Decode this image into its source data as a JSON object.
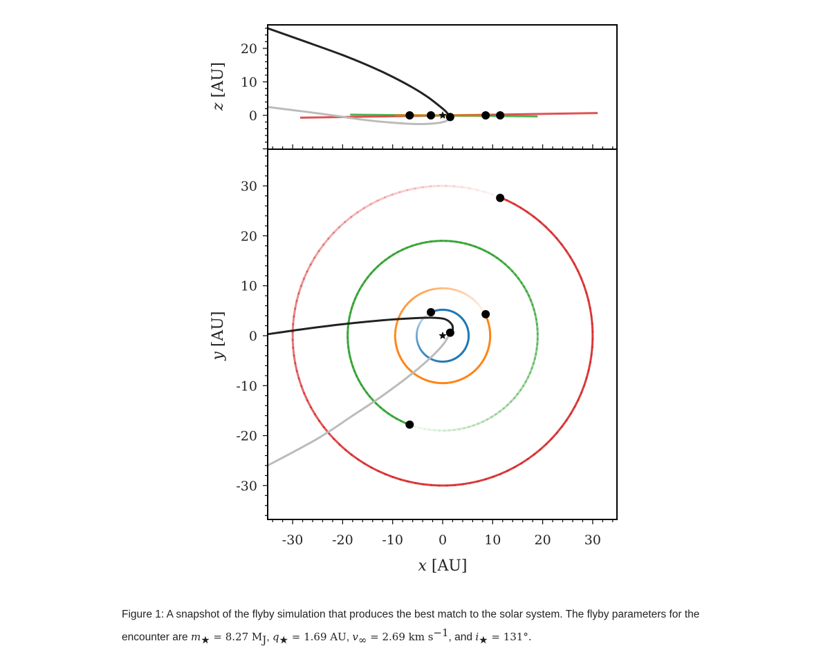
{
  "chart_data": [
    {
      "panel": "top",
      "type": "line",
      "xlabel": "x [AU]",
      "ylabel": "z [AU]",
      "xlim": [
        -35,
        35
      ],
      "ylim": [
        -10,
        27
      ],
      "yticks": [
        0,
        10,
        20
      ],
      "series": [
        {
          "name": "perturber-incoming",
          "color": "#222222",
          "opacity": 1,
          "points": [
            [
              -35,
              26
            ],
            [
              -28,
              22.3
            ],
            [
              -20,
              18
            ],
            [
              -14,
              14.3
            ],
            [
              -10,
              11.5
            ],
            [
              -6,
              8.3
            ],
            [
              -3,
              5.5
            ],
            [
              -1,
              3.2
            ],
            [
              0.6,
              1.2
            ],
            [
              1.5,
              -0.5
            ]
          ]
        },
        {
          "name": "perturber-outgoing",
          "color": "#bbbbbb",
          "opacity": 1,
          "points": [
            [
              -35,
              2.5
            ],
            [
              -28,
              1.2
            ],
            [
              -22,
              0
            ],
            [
              -16,
              -1.3
            ],
            [
              -10,
              -2.2
            ],
            [
              -5,
              -2.6
            ],
            [
              -1,
              -2.3
            ],
            [
              1,
              -1.5
            ],
            [
              1.5,
              -0.5
            ]
          ]
        },
        {
          "name": "red-orbit",
          "color": "#d62728",
          "opacity": 0.8,
          "points": [
            [
              -28.5,
              -0.7
            ],
            [
              31,
              0.7
            ]
          ]
        },
        {
          "name": "green-orbit",
          "color": "#2ca02c",
          "opacity": 0.8,
          "points": [
            [
              -18.5,
              0.2
            ],
            [
              19,
              -0.3
            ]
          ]
        },
        {
          "name": "orange-orbit",
          "color": "#ff7f0e",
          "opacity": 0.6,
          "points": [
            [
              -9.5,
              0.1
            ],
            [
              9.5,
              0
            ]
          ]
        }
      ],
      "markers": [
        [
          -6.6,
          0
        ],
        [
          -2.35,
          0
        ],
        [
          1.5,
          -0.5
        ],
        [
          8.6,
          0
        ],
        [
          11.5,
          0
        ]
      ],
      "star": [
        0,
        0
      ]
    },
    {
      "panel": "bottom",
      "type": "line",
      "xlabel": "x [AU]",
      "ylabel": "y [AU]",
      "xlim": [
        -35,
        35
      ],
      "ylim": [
        -37,
        37
      ],
      "xticks": [
        -30,
        -20,
        -10,
        0,
        10,
        20,
        30
      ],
      "yticks": [
        -30,
        -20,
        -10,
        0,
        10,
        20,
        30
      ],
      "orbits": [
        {
          "name": "blue-orbit",
          "color": "#1f77b4",
          "radius": 5.2,
          "planet_angle_deg": 117
        },
        {
          "name": "orange-orbit",
          "color": "#ff7f0e",
          "radius": 9.5,
          "planet_angle_deg": 26.6
        },
        {
          "name": "green-orbit",
          "color": "#2ca02c",
          "radius": 19,
          "planet_angle_deg": 250
        },
        {
          "name": "red-orbit",
          "color": "#d62728",
          "radius": 30,
          "planet_angle_deg": 67.6
        }
      ],
      "series": [
        {
          "name": "perturber-incoming",
          "color": "#222222",
          "opacity": 1,
          "points": [
            [
              -35,
              0.3
            ],
            [
              -28,
              1.3
            ],
            [
              -20,
              2.3
            ],
            [
              -12,
              3.1
            ],
            [
              -6,
              3.5
            ],
            [
              -2,
              3.6
            ],
            [
              0.5,
              3.3
            ],
            [
              1.8,
              2.3
            ],
            [
              2.0,
              1.2
            ],
            [
              1.5,
              0.6
            ]
          ]
        },
        {
          "name": "perturber-outgoing",
          "color": "#bbbbbb",
          "opacity": 1,
          "points": [
            [
              1.5,
              0.6
            ],
            [
              0.3,
              -1.5
            ],
            [
              -2,
              -4
            ],
            [
              -6,
              -7.5
            ],
            [
              -12,
              -12
            ],
            [
              -18,
              -16
            ],
            [
              -25,
              -20.6
            ],
            [
              -35,
              -26
            ]
          ]
        }
      ],
      "markers": [
        [
          1.5,
          0.6
        ],
        [
          -2.35,
          4.7
        ],
        [
          8.6,
          4.3
        ],
        [
          -6.6,
          -17.8
        ],
        [
          11.5,
          27.6
        ]
      ],
      "star": [
        0,
        0
      ]
    }
  ],
  "axes": {
    "x_label_var": "x",
    "x_label_unit": "[AU]",
    "y_label_var": "y",
    "y_label_unit": "[AU]",
    "z_label_var": "z",
    "z_label_unit": "[AU]"
  },
  "caption": {
    "lead": "Figure 1: A snapshot of the flyby simulation that produces the best match to the solar system. The flyby parameters for the encounter are ",
    "m_sym": "m",
    "m_val": " = 8.27 M",
    "m_unit_sub": "J",
    "sep1": ", ",
    "q_sym": "q",
    "q_val": " = 1.69 AU",
    "sep2": ", ",
    "v_sym": "v",
    "v_sub": "∞",
    "v_val": " = 2.69 km s",
    "v_exp": "−1",
    "sep3": ", and ",
    "i_sym": "i",
    "i_val": " = 131°.",
    "star_sub": "★"
  }
}
